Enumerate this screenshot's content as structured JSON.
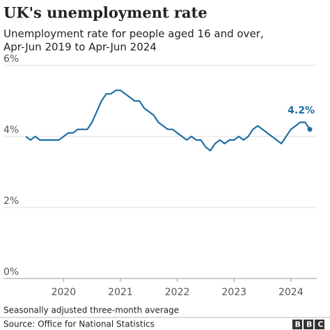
{
  "chart_data": {
    "type": "line",
    "title": "UK's unemployment rate",
    "subtitle": [
      "Unemployment rate for people aged 16 and over,",
      "Apr-Jun 2019 to Apr-Jun 2024"
    ],
    "categories": [
      null,
      null,
      null,
      null,
      null,
      null,
      null,
      null,
      "2020",
      null,
      null,
      null,
      null,
      null,
      null,
      null,
      null,
      null,
      null,
      null,
      "2021",
      null,
      null,
      null,
      null,
      null,
      null,
      null,
      null,
      null,
      null,
      null,
      "2022",
      null,
      null,
      null,
      null,
      null,
      null,
      null,
      null,
      null,
      null,
      null,
      "2023",
      null,
      null,
      null,
      null,
      null,
      null,
      null,
      null,
      null,
      null,
      null,
      "2024",
      null,
      null,
      null,
      null
    ],
    "series": [
      {
        "name": "Unemployment rate",
        "color": "#1f6ea3",
        "values": [
          4.0,
          3.9,
          4.0,
          3.9,
          3.9,
          3.9,
          3.9,
          3.9,
          4.0,
          4.1,
          4.1,
          4.2,
          4.2,
          4.2,
          4.4,
          4.7,
          5.0,
          5.2,
          5.2,
          5.3,
          5.3,
          5.2,
          5.1,
          5.0,
          5.0,
          4.8,
          4.7,
          4.6,
          4.4,
          4.3,
          4.2,
          4.2,
          4.1,
          4.0,
          3.9,
          4.0,
          3.9,
          3.9,
          3.7,
          3.6,
          3.8,
          3.9,
          3.8,
          3.9,
          3.9,
          4.0,
          3.9,
          4.0,
          4.2,
          4.3,
          4.2,
          4.1,
          4.0,
          3.9,
          3.8,
          4.0,
          4.2,
          4.3,
          4.4,
          4.4,
          4.2
        ],
        "value_labels": [
          null,
          null,
          null,
          null,
          null,
          null,
          null,
          null,
          null,
          null,
          null,
          null,
          null,
          null,
          null,
          null,
          null,
          null,
          null,
          null,
          null,
          null,
          null,
          null,
          null,
          null,
          null,
          null,
          null,
          null,
          null,
          null,
          null,
          null,
          null,
          null,
          null,
          null,
          null,
          null,
          null,
          null,
          null,
          null,
          null,
          null,
          null,
          null,
          null,
          null,
          null,
          null,
          null,
          null,
          null,
          null,
          null,
          null,
          null,
          null,
          "4.2%"
        ]
      }
    ],
    "ylim": [
      0,
      6
    ],
    "yticks": [
      {
        "value": 0,
        "label": "0%"
      },
      {
        "value": 2,
        "label": "2%"
      },
      {
        "value": 4,
        "label": "4%"
      },
      {
        "value": 6,
        "label": "6%"
      }
    ],
    "grid": true,
    "note": "Seasonally adjusted three-month average",
    "source": "Source: Office for National Statistics",
    "logo": "BBC"
  }
}
